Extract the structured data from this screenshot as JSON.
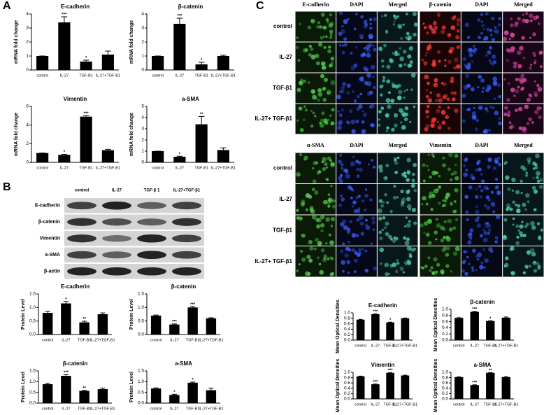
{
  "panel_labels": [
    "A",
    "B",
    "C"
  ],
  "chart_data": [
    {
      "type": "bar",
      "title": "E-cadherin",
      "y_label": "mRNA fold change",
      "categories": [
        "control",
        "IL-27",
        "TGF-B1",
        "IL-27+TGF-B1"
      ],
      "values": [
        1,
        3.4,
        0.6,
        1.1
      ],
      "errors": [
        0,
        0.4,
        0.1,
        0.25
      ],
      "stars": [
        null,
        "***",
        "*",
        null
      ],
      "ylim": [
        0,
        4
      ],
      "yticks": [
        0,
        1,
        2,
        3,
        4
      ],
      "color": "#000000"
    },
    {
      "type": "bar",
      "title": "β-catenin",
      "y_label": "mRNA fold change",
      "categories": [
        "control",
        "IL-27",
        "TGF-B1",
        "IL-27+TGF-B1"
      ],
      "values": [
        1,
        3.3,
        0.4,
        1.0
      ],
      "errors": [
        0,
        0.4,
        0.15,
        0.05
      ],
      "stars": [
        null,
        "***",
        "*",
        null
      ],
      "ylim": [
        0,
        4
      ],
      "yticks": [
        0,
        1,
        2,
        3,
        4
      ],
      "color": "#000000"
    },
    {
      "type": "bar",
      "title": "Vimentin",
      "y_label": "mRNA fold change",
      "categories": [
        "control",
        "IL-27",
        "TGF-B1",
        "IL-27+TGF-B1"
      ],
      "values": [
        1,
        0.8,
        4.9,
        1.3
      ],
      "errors": [
        0,
        0.05,
        0.1,
        0.1
      ],
      "stars": [
        null,
        "*",
        "***",
        null
      ],
      "ylim": [
        0,
        6
      ],
      "yticks": [
        0,
        2,
        4,
        6
      ],
      "color": "#000000"
    },
    {
      "type": "bar",
      "title": "a-SMA",
      "y_label": "mRNA fold change",
      "categories": [
        "control",
        "IL-27",
        "TGF-B1",
        "IL-27+TGF-B1"
      ],
      "values": [
        1,
        0.5,
        3.4,
        1.1
      ],
      "errors": [
        0,
        0.05,
        0.7,
        0.2
      ],
      "stars": [
        null,
        "*",
        "**",
        null
      ],
      "ylim": [
        0,
        5
      ],
      "yticks": [
        0,
        1,
        2,
        3,
        4,
        5
      ],
      "color": "#000000"
    },
    {
      "type": "bar",
      "title": "E-cadherin",
      "y_label": "Protein Level",
      "categories": [
        "control",
        "IL-27",
        "TGF-B1",
        "IL-27+TGF-B1"
      ],
      "values": [
        0.8,
        1.15,
        0.45,
        0.75
      ],
      "errors": [
        0.05,
        0.07,
        0.04,
        0.05
      ],
      "stars": [
        null,
        "*",
        "**",
        null
      ],
      "ylim": [
        0,
        1.5
      ],
      "yticks": [
        {
          "value": 0,
          "label": "0.0"
        },
        {
          "value": 0.5,
          "label": "0.5"
        },
        {
          "value": 1,
          "label": "1.0"
        },
        {
          "value": 1.5,
          "label": "1.5"
        }
      ],
      "color": "#000000"
    },
    {
      "type": "bar",
      "title": "β-catenin",
      "y_label": "Protein Level",
      "categories": [
        "control",
        "IL-27",
        "TGF-B1",
        "IL-27+TGF-B1"
      ],
      "values": [
        0.7,
        0.37,
        1.0,
        0.6
      ],
      "errors": [
        0.02,
        0.02,
        0.03,
        0.02
      ],
      "stars": [
        null,
        "***",
        "***",
        null
      ],
      "ylim": [
        0,
        1.5
      ],
      "yticks": [
        {
          "value": 0,
          "label": "0.0"
        },
        {
          "value": 0.5,
          "label": "0.5"
        },
        {
          "value": 1,
          "label": "1.0"
        },
        {
          "value": 1.5,
          "label": "1.5"
        }
      ],
      "color": "#000000"
    },
    {
      "type": "bar",
      "title": "β-catenin",
      "y_label": "Protein Level",
      "categories": [
        "control",
        "IL-27",
        "TGF-B1",
        "IL-27+TGF-B1"
      ],
      "values": [
        0.88,
        1.27,
        0.57,
        0.65
      ],
      "errors": [
        0.04,
        0.05,
        0.02,
        0.05
      ],
      "stars": [
        null,
        "***",
        "**",
        null
      ],
      "ylim": [
        0,
        1.5
      ],
      "yticks": [
        {
          "value": 0,
          "label": "0.0"
        },
        {
          "value": 0.5,
          "label": "0.5"
        },
        {
          "value": 1,
          "label": "1.0"
        },
        {
          "value": 1.5,
          "label": "1.5"
        }
      ],
      "color": "#000000"
    },
    {
      "type": "bar",
      "title": "a-SMA",
      "y_label": "Protein Level",
      "categories": [
        "control",
        "IL-27",
        "TGF-B1",
        "IL-27+TGF-B1"
      ],
      "values": [
        0.68,
        0.38,
        0.95,
        0.6
      ],
      "errors": [
        0.03,
        0.03,
        0.03,
        0.1
      ],
      "stars": [
        null,
        "*",
        "*",
        null
      ],
      "ylim": [
        0,
        1.5
      ],
      "yticks": [
        {
          "value": 0,
          "label": "0.0"
        },
        {
          "value": 0.5,
          "label": "0.5"
        },
        {
          "value": 1,
          "label": "1.0"
        },
        {
          "value": 1.5,
          "label": "1.5"
        }
      ],
      "color": "#000000"
    },
    {
      "type": "bar",
      "title": "E-cadherin",
      "y_label": "Mean Optical Densities",
      "categories": [
        "control",
        "IL-27",
        "TGF-B1",
        "IL-27+TGF-B1"
      ],
      "values": [
        0.75,
        0.95,
        0.65,
        0.8
      ],
      "errors": [
        0.01,
        0.01,
        0.01,
        0.01
      ],
      "stars": [
        null,
        "***",
        "*",
        null
      ],
      "ylim": [
        0,
        1
      ],
      "yticks": [
        {
          "value": 0,
          "label": "0.0"
        },
        {
          "value": 0.2,
          "label": "0.2"
        },
        {
          "value": 0.4,
          "label": "0.4"
        },
        {
          "value": 0.6,
          "label": "0.6"
        },
        {
          "value": 0.8,
          "label": "0.8"
        },
        {
          "value": 1,
          "label": "1.0"
        }
      ],
      "color": "#000000"
    },
    {
      "type": "bar",
      "title": "β-catenin",
      "y_label": "Mean Optical Densities",
      "categories": [
        "control",
        "IL-27",
        "TGF-B1",
        "IL-27+TGF-B1"
      ],
      "values": [
        0.72,
        0.92,
        0.62,
        0.73
      ],
      "errors": [
        0.01,
        0.01,
        0.01,
        0.02
      ],
      "stars": [
        null,
        "***",
        "*",
        null
      ],
      "ylim": [
        0,
        1
      ],
      "yticks": [
        {
          "value": 0,
          "label": "0.0"
        },
        {
          "value": 0.2,
          "label": "0.2"
        },
        {
          "value": 0.4,
          "label": "0.4"
        },
        {
          "value": 0.6,
          "label": "0.6"
        },
        {
          "value": 0.8,
          "label": "0.8"
        },
        {
          "value": 1,
          "label": "1.0"
        }
      ],
      "color": "#000000"
    },
    {
      "type": "bar",
      "title": "Vimentin",
      "y_label": "Mean Optical Densities",
      "categories": [
        "control",
        "IL-27",
        "TGF-B1",
        "IL-27+TGF-B1"
      ],
      "values": [
        0.85,
        0.55,
        0.98,
        0.88
      ],
      "errors": [
        0.01,
        0.01,
        0.01,
        0.01
      ],
      "stars": [
        null,
        "***",
        "***",
        null
      ],
      "ylim": [
        0,
        1
      ],
      "yticks": [
        {
          "value": 0,
          "label": "0.0"
        },
        {
          "value": 0.2,
          "label": "0.2"
        },
        {
          "value": 0.4,
          "label": "0.4"
        },
        {
          "value": 0.6,
          "label": "0.6"
        },
        {
          "value": 0.8,
          "label": "0.8"
        },
        {
          "value": 1,
          "label": "1.0"
        }
      ],
      "color": "#000000"
    },
    {
      "type": "bar",
      "title": "a-SMA",
      "y_label": "Mean Optical Densities",
      "categories": [
        "control",
        "IL-27",
        "TGF-B1",
        "IL-27+TGF-B1"
      ],
      "values": [
        0.82,
        0.52,
        0.98,
        0.82
      ],
      "errors": [
        0.01,
        0.01,
        0.01,
        0.02
      ],
      "stars": [
        null,
        "***",
        "**",
        null
      ],
      "ylim": [
        0,
        1
      ],
      "yticks": [
        {
          "value": 0,
          "label": "0.0"
        },
        {
          "value": 0.2,
          "label": "0.2"
        },
        {
          "value": 0.4,
          "label": "0.4"
        },
        {
          "value": 0.6,
          "label": "0.6"
        },
        {
          "value": 0.8,
          "label": "0.8"
        },
        {
          "value": 1,
          "label": "1.0"
        }
      ],
      "color": "#000000"
    }
  ],
  "blot": {
    "columns": [
      "control",
      "IL-27",
      "TGF-β 1",
      "IL-27+TGF-β1"
    ],
    "rows": [
      "E-cadherin",
      "β-catenin",
      "Vimentin",
      "a-SMA",
      "β-actin"
    ]
  },
  "micrograph_sections": [
    {
      "row_labels": [
        "control",
        "IL-27",
        "TGF-β1",
        "IL-27+ TGF-β1"
      ],
      "groups": [
        {
          "headers": [
            "E-cadherin",
            "DAPI",
            "Merged"
          ]
        },
        {
          "headers": [
            "β-catenin",
            "DAPI",
            "Merged"
          ]
        }
      ]
    },
    {
      "row_labels": [
        "control",
        "IL-27",
        "TGF-β1",
        "IL-27+ TGF-β1"
      ],
      "groups": [
        {
          "headers": [
            "α-SMA",
            "DAPI",
            "Merged"
          ]
        },
        {
          "headers": [
            "Vimentin",
            "DAPI",
            "Merged"
          ]
        }
      ]
    }
  ]
}
